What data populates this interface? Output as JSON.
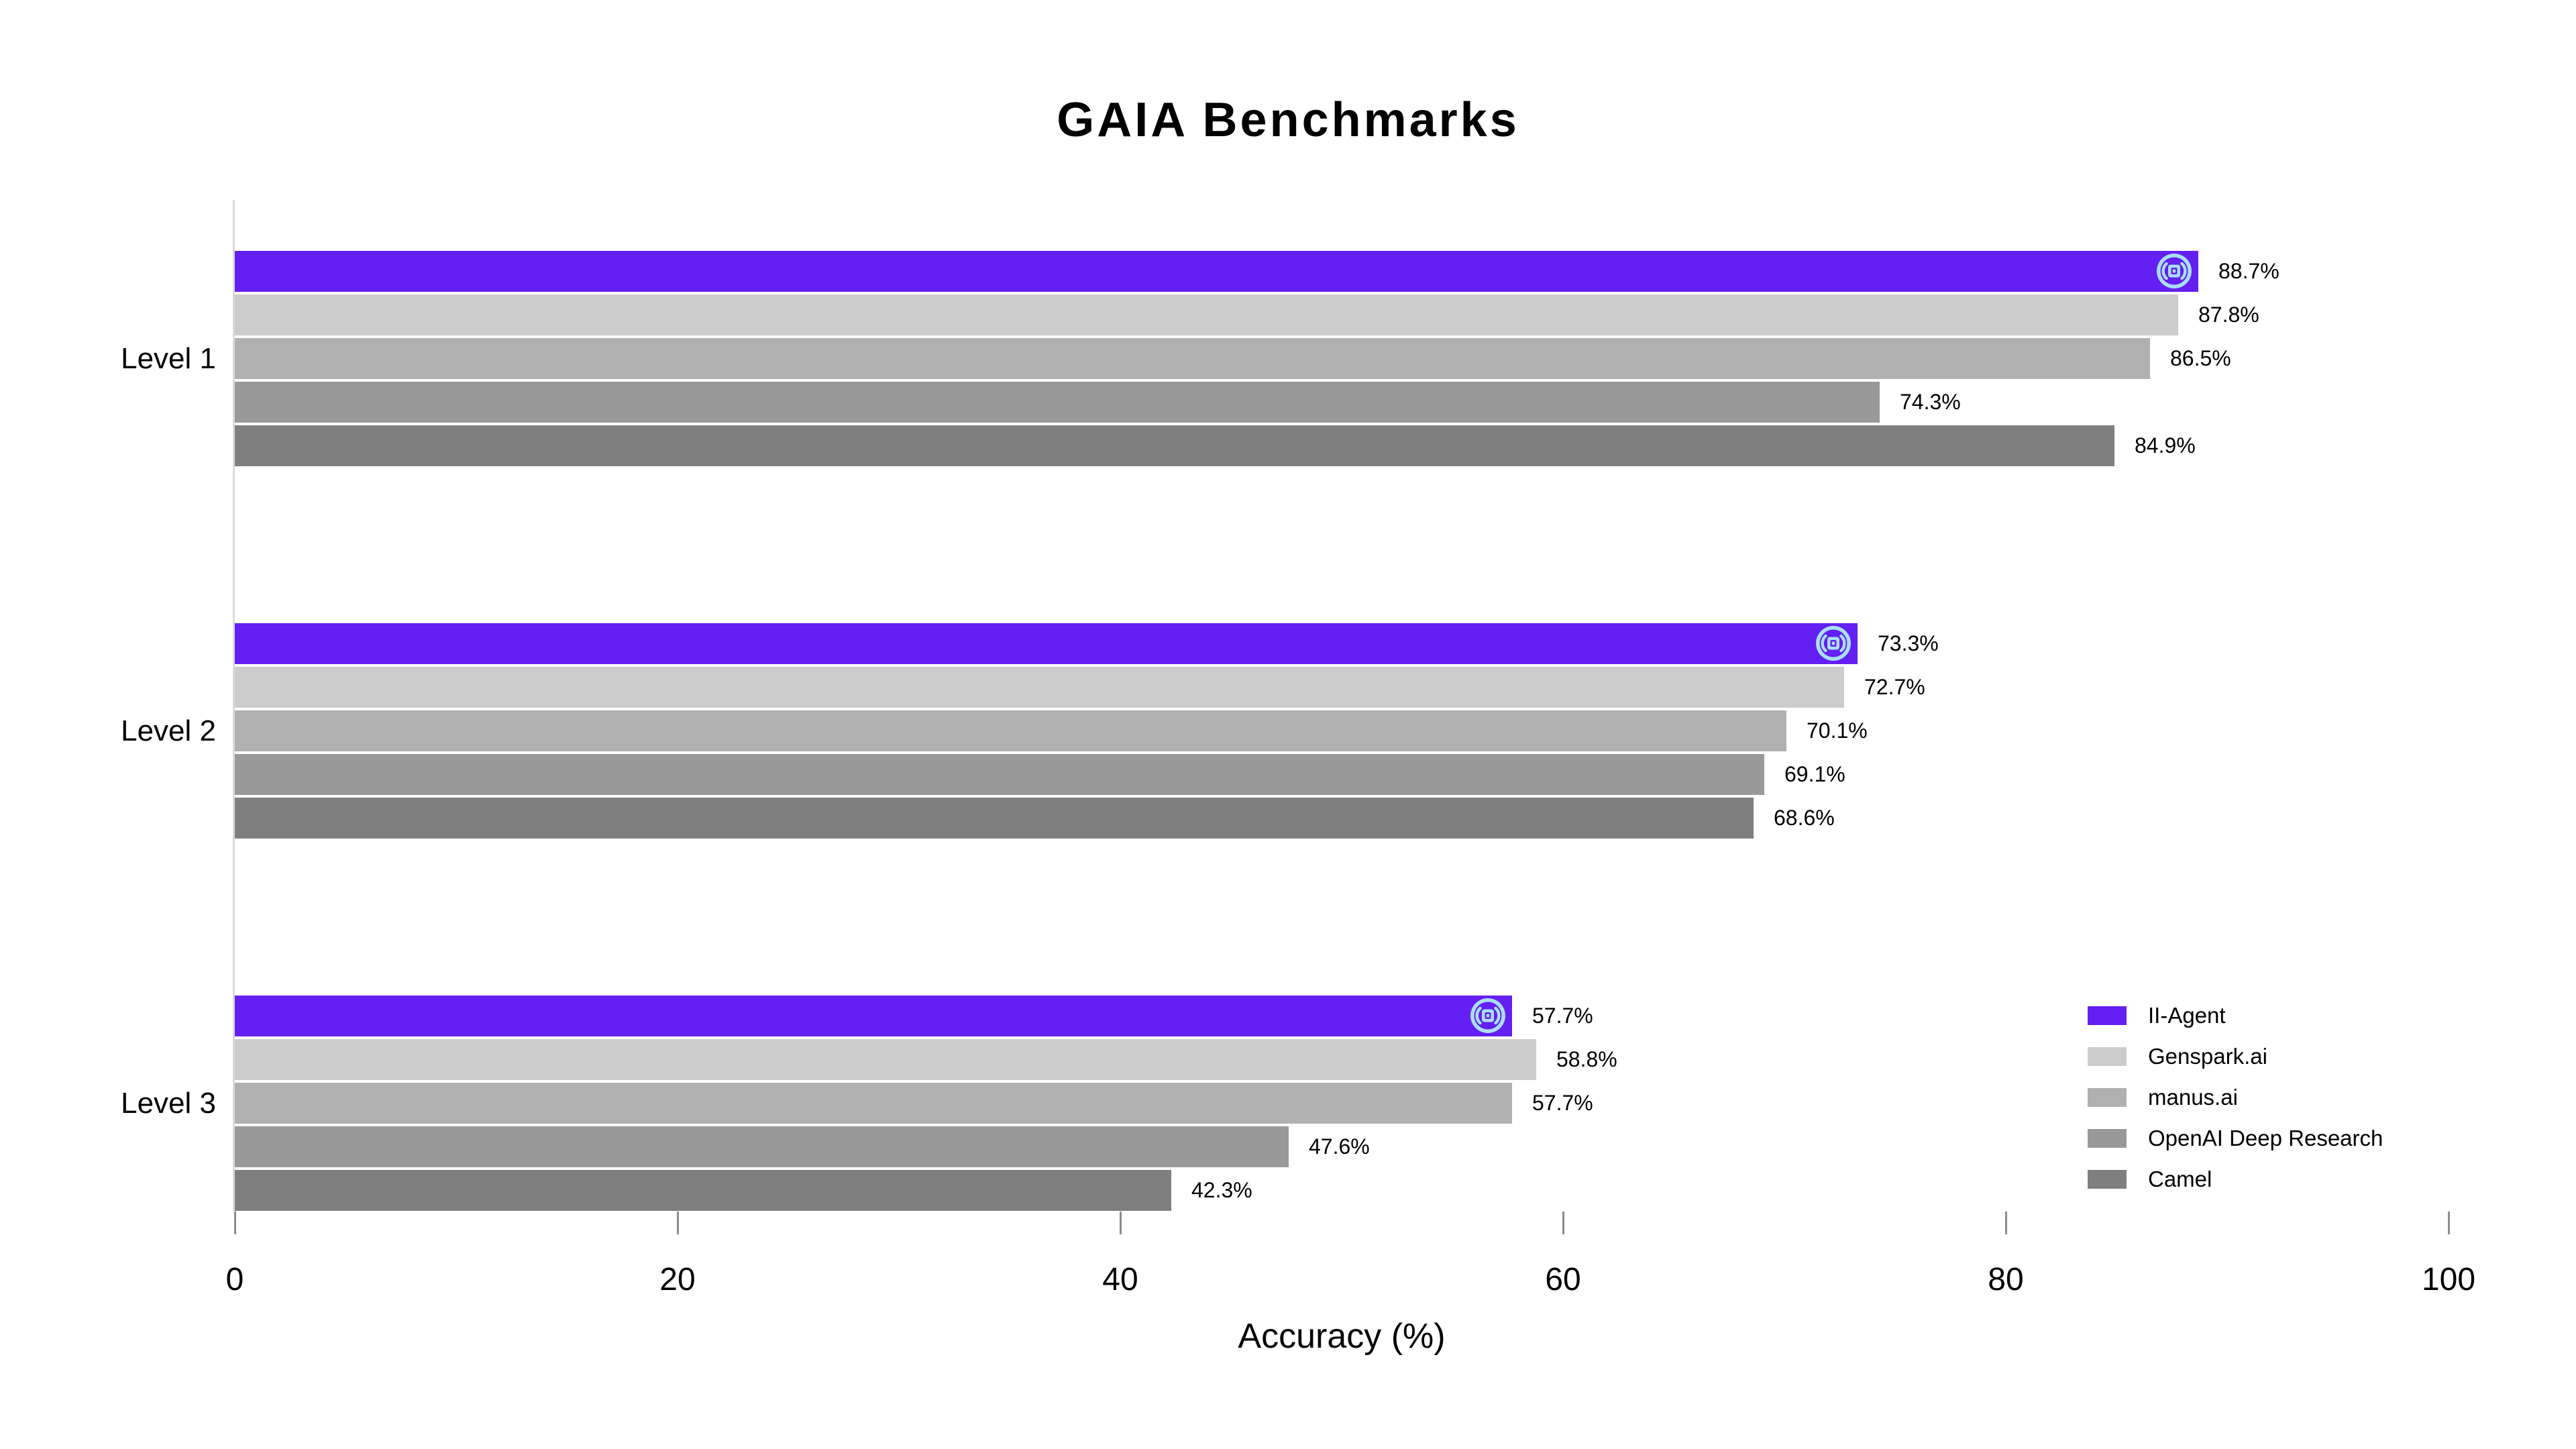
{
  "page": {
    "background": "#ffffff"
  },
  "chart_data": {
    "type": "bar",
    "orientation": "horizontal",
    "title": "GAIA Benchmarks",
    "xlabel": "Accuracy (%)",
    "xlim": [
      0,
      100
    ],
    "xticks": [
      0,
      20,
      40,
      60,
      80,
      100
    ],
    "grid": false,
    "legend_position": "right-bottom",
    "categories": [
      "Level 1",
      "Level 2",
      "Level 3"
    ],
    "series": [
      {
        "name": "II-Agent",
        "color": "#641ff2",
        "values": [
          88.7,
          73.3,
          57.7
        ],
        "marker": "ii-agent-logo"
      },
      {
        "name": "Genspark.ai",
        "color": "#cccccc",
        "values": [
          87.8,
          72.7,
          58.8
        ]
      },
      {
        "name": "manus.ai",
        "color": "#b0b0b0",
        "values": [
          86.5,
          70.1,
          57.7
        ]
      },
      {
        "name": "OpenAI Deep Research",
        "color": "#999999",
        "values": [
          74.3,
          69.1,
          47.6
        ]
      },
      {
        "name": "Camel",
        "color": "#7f7f7f",
        "values": [
          84.9,
          68.6,
          42.3
        ]
      }
    ],
    "value_label_suffix": "%",
    "logo_colors": {
      "pale": "#a9dff4",
      "purple": "#641ff2"
    },
    "axis_colors": {
      "line": "#d9d9d9",
      "tick": "#8c8c8c"
    }
  }
}
